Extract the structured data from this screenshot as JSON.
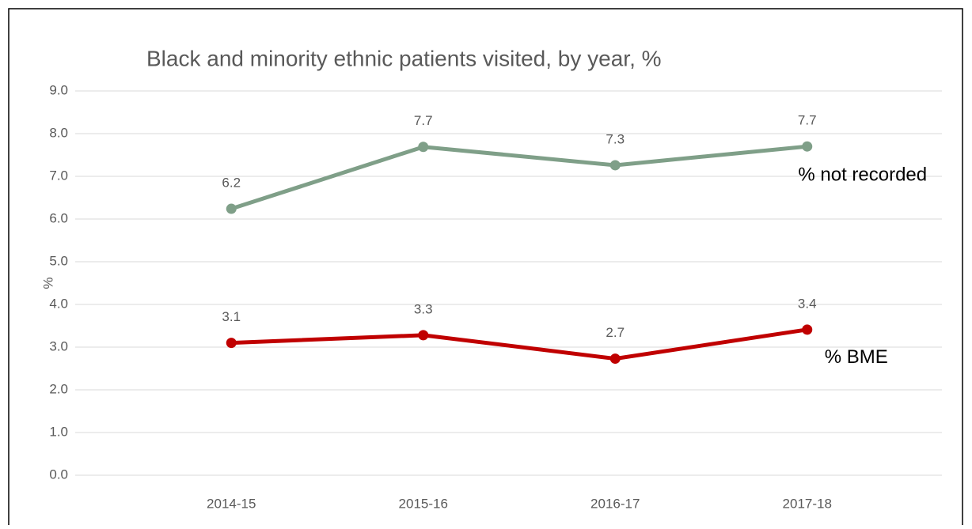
{
  "chart_data": {
    "type": "line",
    "title": "Black and minority ethnic patients visited, by year, %",
    "ylabel": "%",
    "categories": [
      "2014-15",
      "2015-16",
      "2016-17",
      "2017-18"
    ],
    "series": [
      {
        "name": "% not recorded",
        "color": "#7f9f88",
        "values": [
          6.24,
          7.69,
          7.26,
          7.7
        ],
        "value_labels": [
          "6.2",
          "7.7",
          "7.3",
          "7.7"
        ]
      },
      {
        "name": "% BME",
        "color": "#c00000",
        "values": [
          3.1,
          3.28,
          2.73,
          3.41
        ],
        "value_labels": [
          "3.1",
          "3.3",
          "2.7",
          "3.4"
        ]
      }
    ],
    "ylim": [
      0,
      9
    ],
    "yticks": [
      {
        "value": 0,
        "label": "0.0"
      },
      {
        "value": 1,
        "label": "1.0"
      },
      {
        "value": 2,
        "label": "2.0"
      },
      {
        "value": 3,
        "label": "3.0"
      },
      {
        "value": 4,
        "label": "4.0"
      },
      {
        "value": 5,
        "label": "5.0"
      },
      {
        "value": 6,
        "label": "6.0"
      },
      {
        "value": 7,
        "label": "7.0"
      },
      {
        "value": 8,
        "label": "8.0"
      },
      {
        "value": 9,
        "label": "9.0"
      }
    ],
    "grid": true
  }
}
